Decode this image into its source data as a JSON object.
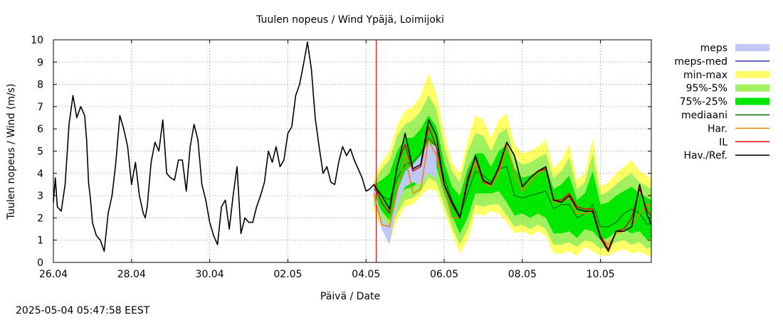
{
  "chart_data": {
    "type": "line",
    "title": "Tuulen nopeus / Wind  Ypäjä, Loimijoki",
    "xlabel": "Päivä / Date",
    "ylabel": "Tuulen nopeus / Wind (m/s)",
    "ylim": [
      0,
      10
    ],
    "xlim_days": [
      0,
      15.3
    ],
    "grid": true,
    "x_ticks": [
      {
        "day": 0,
        "label": "26.04"
      },
      {
        "day": 2,
        "label": "28.04"
      },
      {
        "day": 4,
        "label": "30.04"
      },
      {
        "day": 6,
        "label": "02.05"
      },
      {
        "day": 8,
        "label": "04.05"
      },
      {
        "day": 10,
        "label": "06.05"
      },
      {
        "day": 12,
        "label": "08.05"
      },
      {
        "day": 14,
        "label": "10.05"
      }
    ],
    "y_ticks": [
      0,
      1,
      2,
      3,
      4,
      5,
      6,
      7,
      8,
      9,
      10
    ],
    "now_marker_day": 8.26,
    "legend_position": "right",
    "legend": [
      {
        "label": "meps",
        "style": "band",
        "color": "#c0c8f8"
      },
      {
        "label": "meps-med",
        "style": "line",
        "color": "#3030c0"
      },
      {
        "label": "min-max",
        "style": "band",
        "color": "#ffff66"
      },
      {
        "label": "95%-5%",
        "style": "band",
        "color": "#a0f060"
      },
      {
        "label": "75%-25%",
        "style": "band",
        "color": "#00e800"
      },
      {
        "label": "mediaani",
        "style": "line",
        "color": "#007000"
      },
      {
        "label": "Har.",
        "style": "line",
        "color": "#f08000"
      },
      {
        "label": "IL",
        "style": "line",
        "color": "#e00000"
      },
      {
        "label": "Hav./Ref.",
        "style": "line",
        "color": "#000000"
      }
    ],
    "observed": {
      "name": "Hav./Ref.",
      "x": [
        0,
        0.05,
        0.1,
        0.15,
        0.2,
        0.3,
        0.4,
        0.5,
        0.6,
        0.7,
        0.8,
        0.85,
        0.9,
        0.95,
        1.0,
        1.05,
        1.1,
        1.2,
        1.3,
        1.4,
        1.5,
        1.6,
        1.7,
        1.8,
        1.9,
        2.0,
        2.1,
        2.2,
        2.3,
        2.35,
        2.4,
        2.5,
        2.6,
        2.7,
        2.8,
        2.9,
        3.0,
        3.1,
        3.2,
        3.3,
        3.4,
        3.5,
        3.6,
        3.7,
        3.8,
        3.9,
        4.0,
        4.1,
        4.2,
        4.3,
        4.4,
        4.5,
        4.6,
        4.7,
        4.8,
        4.9,
        5.0,
        5.1,
        5.2,
        5.3,
        5.4,
        5.5,
        5.6,
        5.7,
        5.8,
        5.9,
        6.0,
        6.1,
        6.2,
        6.3,
        6.4,
        6.5,
        6.6,
        6.7,
        6.8,
        6.9,
        7.0,
        7.1,
        7.2,
        7.3,
        7.4,
        7.5,
        7.6,
        7.7,
        7.8,
        7.9,
        8.0,
        8.1,
        8.2
      ],
      "y": [
        2.7,
        3.8,
        2.5,
        2.4,
        2.3,
        3.5,
        6.2,
        7.5,
        6.5,
        7.0,
        6.6,
        5.5,
        3.6,
        2.8,
        1.8,
        1.5,
        1.2,
        1.0,
        0.5,
        2.2,
        3.0,
        4.5,
        6.6,
        6.0,
        5.2,
        3.5,
        4.5,
        3.0,
        2.2,
        2.0,
        2.5,
        4.5,
        5.4,
        5.0,
        6.4,
        4.0,
        3.8,
        3.7,
        4.6,
        4.6,
        3.2,
        5.2,
        6.2,
        5.5,
        3.5,
        2.8,
        1.8,
        1.2,
        0.8,
        2.5,
        2.8,
        1.5,
        3.0,
        4.3,
        1.3,
        2.0,
        1.8,
        1.8,
        2.5,
        3.0,
        3.6,
        5.0,
        4.5,
        5.2,
        4.3,
        4.6,
        5.8,
        6.1,
        7.5,
        8.0,
        8.9,
        9.9,
        8.7,
        6.5,
        5.2,
        4.0,
        4.3,
        3.6,
        3.5,
        4.5,
        5.2,
        4.8,
        5.1,
        4.6,
        4.2,
        3.8,
        3.2,
        3.3,
        3.5
      ]
    },
    "forecast_x": [
      8.2,
      8.4,
      8.6,
      8.8,
      9.0,
      9.2,
      9.4,
      9.6,
      9.8,
      10.0,
      10.2,
      10.4,
      10.6,
      10.8,
      11.0,
      11.2,
      11.4,
      11.6,
      11.8,
      12.0,
      12.2,
      12.4,
      12.6,
      12.8,
      13.0,
      13.2,
      13.4,
      13.6,
      13.8,
      14.0,
      14.2,
      14.4,
      14.6,
      14.8,
      15.0,
      15.2,
      15.3
    ],
    "series": [
      {
        "name": "min-max",
        "low": [
          2.3,
          1.5,
          0.9,
          1.9,
          2.5,
          2.6,
          3.0,
          3.3,
          3.2,
          2.3,
          1.3,
          0.4,
          1.0,
          2.2,
          2.1,
          2.3,
          2.2,
          1.8,
          1.3,
          1.4,
          1.2,
          1.4,
          1.2,
          0.4,
          0.4,
          0.5,
          0.3,
          0.7,
          0.5,
          0.3,
          0.3,
          0.5,
          0.6,
          0.4,
          0.5,
          0.3,
          0.3
        ],
        "high": [
          3.8,
          4.5,
          5.0,
          6.2,
          6.8,
          7.0,
          7.5,
          8.5,
          7.6,
          5.8,
          4.5,
          4.0,
          5.5,
          6.6,
          6.4,
          5.6,
          6.4,
          6.7,
          5.3,
          4.9,
          5.0,
          5.2,
          5.5,
          4.2,
          4.6,
          5.3,
          3.7,
          4.0,
          5.6,
          3.4,
          3.6,
          4.0,
          4.3,
          4.6,
          4.1,
          3.9,
          3.7
        ]
      },
      {
        "name": "95%-5%",
        "low": [
          2.6,
          1.8,
          1.4,
          2.2,
          2.8,
          2.9,
          3.2,
          3.8,
          3.6,
          2.6,
          1.6,
          0.8,
          1.5,
          2.6,
          2.5,
          2.6,
          2.6,
          2.1,
          1.6,
          1.7,
          1.5,
          1.7,
          1.5,
          0.8,
          0.8,
          0.9,
          0.7,
          1.0,
          0.9,
          0.6,
          0.7,
          0.9,
          1.0,
          0.8,
          0.9,
          0.6,
          0.7
        ],
        "high": [
          3.6,
          4.2,
          4.6,
          5.7,
          6.2,
          6.4,
          6.8,
          7.5,
          6.9,
          5.2,
          4.1,
          3.6,
          5.0,
          5.8,
          5.7,
          5.0,
          5.8,
          6.0,
          4.7,
          4.4,
          4.5,
          4.7,
          4.9,
          3.8,
          4.1,
          4.7,
          3.3,
          3.6,
          4.9,
          3.0,
          3.2,
          3.5,
          3.8,
          4.0,
          3.6,
          3.4,
          3.3
        ]
      },
      {
        "name": "75%-25%",
        "low": [
          3.0,
          2.3,
          1.9,
          2.8,
          3.3,
          3.4,
          3.7,
          4.5,
          4.3,
          3.1,
          2.1,
          1.3,
          2.0,
          3.1,
          3.1,
          3.1,
          3.2,
          2.7,
          2.1,
          2.2,
          2.0,
          2.2,
          2.0,
          1.3,
          1.3,
          1.4,
          1.1,
          1.5,
          1.4,
          1.0,
          1.1,
          1.4,
          1.5,
          1.3,
          1.4,
          1.0,
          1.1
        ],
        "high": [
          3.5,
          3.7,
          4.0,
          5.0,
          5.6,
          5.6,
          6.0,
          6.6,
          6.1,
          4.5,
          3.4,
          3.0,
          4.2,
          4.9,
          4.9,
          4.3,
          5.0,
          5.3,
          4.2,
          3.8,
          3.9,
          4.1,
          4.3,
          3.3,
          3.5,
          3.9,
          2.8,
          3.1,
          4.1,
          2.6,
          2.7,
          3.0,
          3.2,
          3.4,
          3.1,
          2.9,
          2.8
        ]
      },
      {
        "name": "meps",
        "low": [
          3.2,
          1.5,
          0.8,
          2.6,
          3.4,
          3.6,
          3.5,
          4.0,
          3.8,
          null,
          null,
          null,
          null,
          null,
          null,
          null,
          null,
          null,
          null,
          null,
          null,
          null,
          null,
          null,
          null,
          null,
          null,
          null,
          null,
          null,
          null,
          null,
          null,
          null,
          null,
          null,
          null
        ],
        "high": [
          3.5,
          2.0,
          1.6,
          3.2,
          4.1,
          4.4,
          4.8,
          5.4,
          5.2,
          null,
          null,
          null,
          null,
          null,
          null,
          null,
          null,
          null,
          null,
          null,
          null,
          null,
          null,
          null,
          null,
          null,
          null,
          null,
          null,
          null,
          null,
          null,
          null,
          null,
          null,
          null,
          null
        ]
      },
      {
        "name": "mediaani",
        "values": [
          3.3,
          3.0,
          2.8,
          3.8,
          4.4,
          4.5,
          4.9,
          5.6,
          5.2,
          3.8,
          2.8,
          2.1,
          3.1,
          4.1,
          3.9,
          3.6,
          4.2,
          4.3,
          3.0,
          2.9,
          3.0,
          3.1,
          3.2,
          2.4,
          2.6,
          2.6,
          2.0,
          2.2,
          2.6,
          1.6,
          1.6,
          1.8,
          2.2,
          2.4,
          2.2,
          1.7,
          1.8
        ]
      },
      {
        "name": "Har.",
        "values": [
          3.1,
          1.7,
          1.6,
          3.2,
          4.8,
          3.1,
          3.3,
          5.5,
          4.8,
          3.3,
          2.0,
          2.0,
          3.6,
          4.5,
          3.6,
          3.4,
          4.0,
          5.3,
          3.9,
          3.2,
          3.6,
          4.0,
          4.2,
          2.7,
          2.7,
          2.9,
          2.2,
          2.2,
          2.3,
          1.1,
          0.8,
          1.3,
          1.4,
          1.6,
          2.2,
          2.6,
          2.5
        ]
      },
      {
        "name": "IL",
        "values": [
          3.5,
          2.7,
          2.2,
          4.4,
          5.3,
          4.1,
          4.3,
          6.1,
          5.2,
          3.5,
          2.6,
          2.0,
          3.8,
          4.7,
          3.6,
          3.5,
          4.2,
          5.4,
          4.8,
          3.4,
          3.8,
          4.1,
          4.2,
          2.8,
          2.8,
          3.1,
          2.5,
          2.4,
          2.4,
          1.2,
          0.6,
          1.4,
          1.5,
          2.0,
          3.3,
          2.3,
          2.1
        ]
      },
      {
        "name": "Hav./Ref. forecast",
        "values": [
          3.5,
          3.0,
          2.4,
          4.3,
          5.8,
          4.2,
          4.4,
          6.4,
          5.7,
          3.5,
          2.7,
          2.0,
          3.6,
          4.8,
          3.7,
          3.5,
          4.3,
          5.4,
          4.8,
          3.4,
          3.8,
          4.1,
          4.3,
          2.8,
          2.7,
          3.0,
          2.4,
          2.3,
          2.3,
          1.1,
          0.5,
          1.4,
          1.4,
          1.6,
          3.5,
          2.1,
          1.7
        ]
      }
    ]
  },
  "timestamp": "2025-05-04  05:47:58 EEST"
}
